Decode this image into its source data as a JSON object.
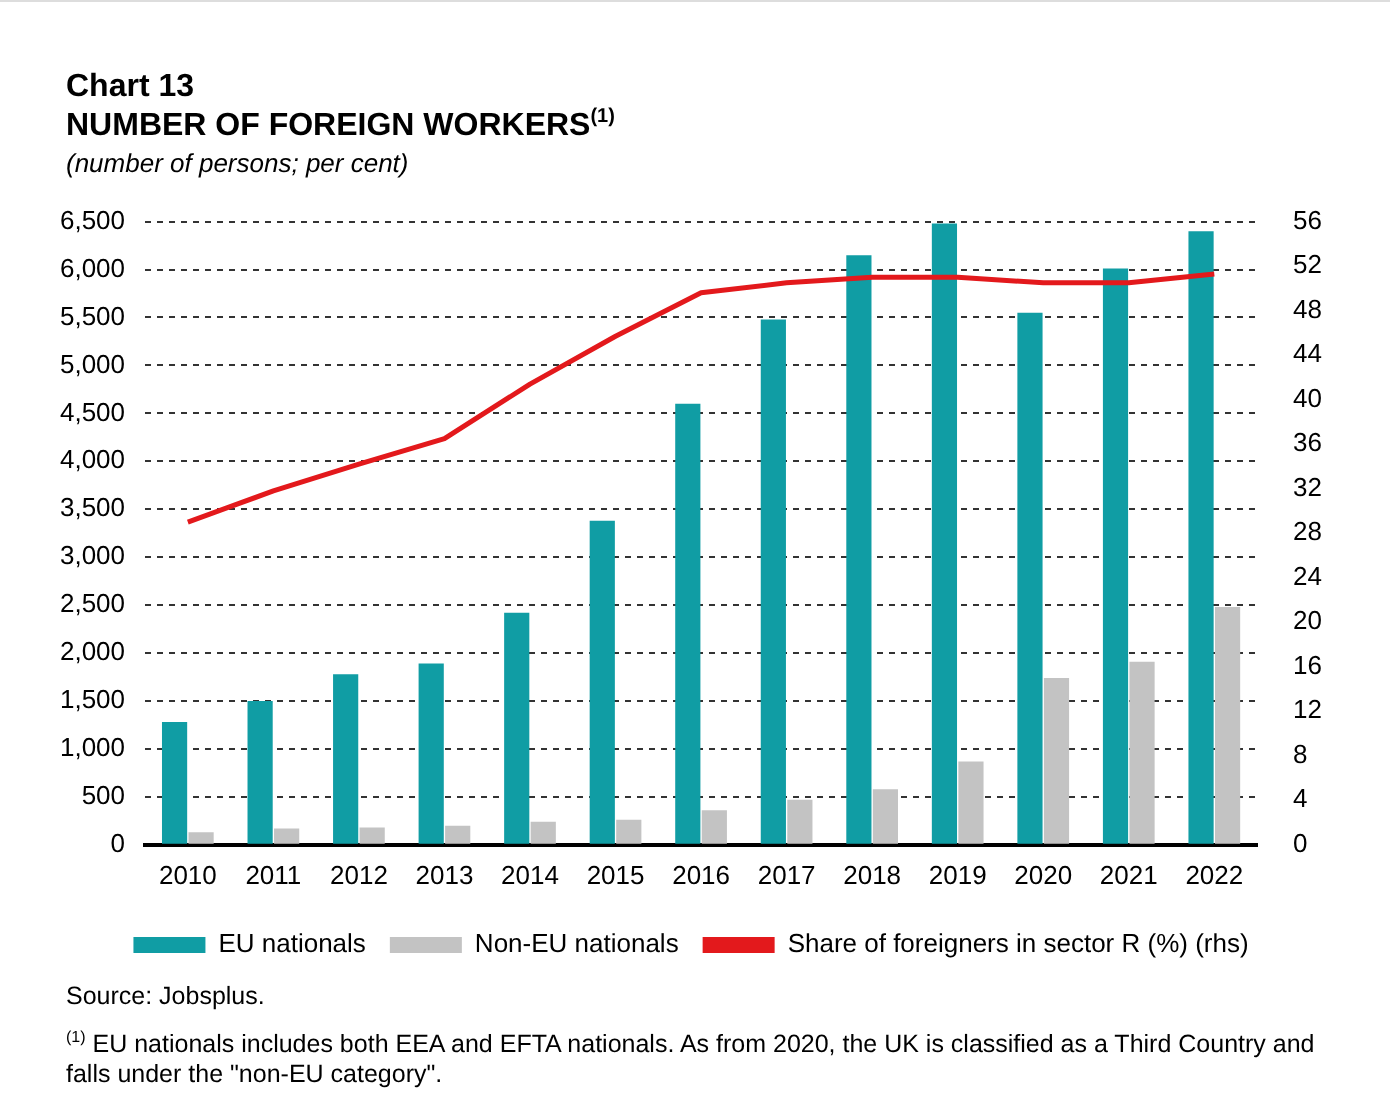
{
  "chart_data": {
    "type": "bar",
    "title": "Chart 13",
    "subtitle": "NUMBER OF FOREIGN WORKERS$^{(1)}$",
    "ylabel": "(number of persons; per cent)",
    "categories": [
      "2010",
      "2011",
      "2012",
      "2013",
      "2014",
      "2015",
      "2016",
      "2017",
      "2018",
      "2019",
      "2020",
      "2021",
      "2022"
    ],
    "series": [
      {
        "name": "EU nationals",
        "color": "#109da4",
        "values": [
          1280,
          1500,
          1780,
          1890,
          2420,
          3380,
          4600,
          5480,
          6150,
          6480,
          5550,
          6010,
          6400
        ]
      },
      {
        "name": "Non-EU nationals",
        "color": "#c3c3c3",
        "values": [
          130,
          170,
          180,
          200,
          240,
          260,
          360,
          470,
          580,
          870,
          1740,
          1910,
          2480
        ]
      },
      {
        "name": "Share of foreigners in sector R (%) (rhs)",
        "type": "line",
        "axis": "y2",
        "color": "#e3191c",
        "marker": "none",
        "values": [
          29,
          31.8,
          34.2,
          36.5,
          41.4,
          45.7,
          49.6,
          50.5,
          51,
          51,
          50.5,
          50.5,
          51.3
        ]
      }
    ],
    "ylim": [
      0,
      6500
    ],
    "yticks": [
      {
        "value": 0,
        "label": "0"
      },
      {
        "value": 500,
        "label": "500"
      },
      {
        "value": 1000,
        "label": "1,000"
      },
      {
        "value": 1500,
        "label": "1,500"
      },
      {
        "value": 2000,
        "label": "2,000"
      },
      {
        "value": 2500,
        "label": "2,500"
      },
      {
        "value": 3000,
        "label": "3,000"
      },
      {
        "value": 3500,
        "label": "3,500"
      },
      {
        "value": 4000,
        "label": "4,000"
      },
      {
        "value": 4500,
        "label": "4,500"
      },
      {
        "value": 5000,
        "label": "5,000"
      },
      {
        "value": 5500,
        "label": "5,500"
      },
      {
        "value": 6000,
        "label": "6,000"
      },
      {
        "value": 6500,
        "label": "6,500"
      }
    ],
    "y2lim": [
      0,
      56
    ],
    "y2ticks": [
      0,
      4,
      8,
      12,
      16,
      20,
      24,
      28,
      32,
      36,
      40,
      44,
      48,
      52,
      56
    ],
    "grid": "y",
    "legend": "bottom",
    "annotations": [
      "Source: Jobsplus.",
      "$^{(1)}$ EU nationals includes both EEA and EFTA nationals. As from 2020, the UK is classified as a Third Country and falls under the \"non-EU category\"."
    ]
  }
}
